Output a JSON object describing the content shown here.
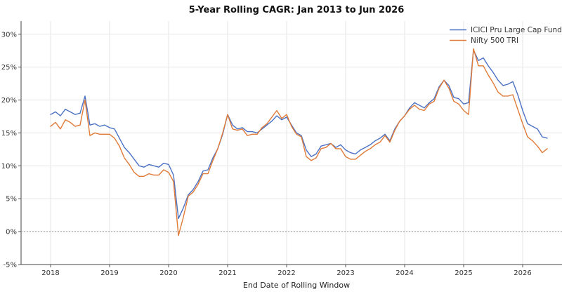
{
  "chart_data": {
    "type": "line",
    "title": "5-Year Rolling CAGR: Jan 2013 to Jun 2026",
    "xlabel": "End Date of Rolling Window",
    "ylabel": "",
    "x_ticks": [
      "2018",
      "2019",
      "2020",
      "2021",
      "2022",
      "2023",
      "2024",
      "2025",
      "2026"
    ],
    "y_ticks": [
      "-5%",
      "0%",
      "5%",
      "10%",
      "15%",
      "20%",
      "25%",
      "30%"
    ],
    "xlim": [
      "2017-07",
      "2026-09"
    ],
    "ylim": [
      -5,
      32
    ],
    "grid": true,
    "zero_line": true,
    "legend_position": "top-right",
    "x": [
      "2018-01",
      "2018-02",
      "2018-03",
      "2018-04",
      "2018-05",
      "2018-06",
      "2018-07",
      "2018-08",
      "2018-09",
      "2018-10",
      "2018-11",
      "2018-12",
      "2019-01",
      "2019-02",
      "2019-03",
      "2019-04",
      "2019-05",
      "2019-06",
      "2019-07",
      "2019-08",
      "2019-09",
      "2019-10",
      "2019-11",
      "2019-12",
      "2020-01",
      "2020-02",
      "2020-03",
      "2020-04",
      "2020-05",
      "2020-06",
      "2020-07",
      "2020-08",
      "2020-09",
      "2020-10",
      "2020-11",
      "2020-12",
      "2021-01",
      "2021-02",
      "2021-03",
      "2021-04",
      "2021-05",
      "2021-06",
      "2021-07",
      "2021-08",
      "2021-09",
      "2021-10",
      "2021-11",
      "2021-12",
      "2022-01",
      "2022-02",
      "2022-03",
      "2022-04",
      "2022-05",
      "2022-06",
      "2022-07",
      "2022-08",
      "2022-09",
      "2022-10",
      "2022-11",
      "2022-12",
      "2023-01",
      "2023-02",
      "2023-03",
      "2023-04",
      "2023-05",
      "2023-06",
      "2023-07",
      "2023-08",
      "2023-09",
      "2023-10",
      "2023-11",
      "2023-12",
      "2024-01",
      "2024-02",
      "2024-03",
      "2024-04",
      "2024-05",
      "2024-06",
      "2024-07",
      "2024-08",
      "2024-09",
      "2024-10",
      "2024-11",
      "2024-12",
      "2025-01",
      "2025-02",
      "2025-03",
      "2025-04",
      "2025-05",
      "2025-06",
      "2025-07",
      "2025-08",
      "2025-09",
      "2025-10",
      "2025-11",
      "2025-12",
      "2026-01",
      "2026-02",
      "2026-03",
      "2026-04",
      "2026-05",
      "2026-06"
    ],
    "series": [
      {
        "name": "ICICI Pru Large Cap Fund",
        "color": "#4c72c4",
        "values": [
          17.8,
          18.2,
          17.6,
          18.6,
          18.2,
          17.8,
          18.0,
          20.6,
          16.2,
          16.4,
          16.0,
          16.2,
          15.8,
          15.6,
          14.2,
          12.8,
          12.0,
          11.0,
          10.0,
          9.8,
          10.2,
          10.0,
          9.8,
          10.4,
          10.2,
          8.6,
          2.0,
          3.6,
          5.6,
          6.4,
          7.6,
          9.2,
          9.4,
          11.2,
          12.6,
          14.8,
          17.8,
          16.2,
          15.6,
          15.8,
          15.2,
          15.2,
          15.0,
          15.6,
          16.2,
          16.8,
          17.6,
          17.0,
          17.4,
          16.2,
          15.0,
          14.6,
          12.4,
          11.4,
          11.8,
          13.0,
          13.2,
          13.4,
          12.8,
          13.2,
          12.4,
          12.0,
          11.8,
          12.4,
          12.8,
          13.2,
          13.8,
          14.2,
          14.8,
          13.8,
          15.6,
          16.8,
          17.6,
          18.8,
          19.6,
          19.2,
          18.8,
          19.6,
          20.2,
          22.0,
          23.0,
          22.2,
          20.4,
          20.2,
          19.4,
          19.6,
          27.6,
          26.0,
          26.4,
          25.2,
          24.2,
          23.0,
          22.2,
          22.4,
          22.8,
          20.8,
          18.4,
          16.4,
          16.0,
          15.6,
          14.4,
          14.2
        ]
      },
      {
        "name": "Nifty 500 TRI",
        "color": "#e07b39",
        "values": [
          16.0,
          16.6,
          15.6,
          17.0,
          16.6,
          16.0,
          16.2,
          20.0,
          14.6,
          15.0,
          14.8,
          14.8,
          14.8,
          14.2,
          13.0,
          11.2,
          10.2,
          9.0,
          8.4,
          8.4,
          8.8,
          8.6,
          8.6,
          9.4,
          9.0,
          7.6,
          -0.6,
          2.2,
          5.4,
          6.0,
          7.2,
          8.8,
          8.8,
          10.8,
          12.6,
          15.0,
          17.8,
          15.6,
          15.4,
          15.6,
          14.6,
          14.8,
          14.8,
          15.8,
          16.4,
          17.4,
          18.4,
          17.2,
          17.8,
          16.0,
          14.8,
          14.4,
          11.4,
          10.8,
          11.2,
          12.6,
          12.8,
          13.4,
          12.6,
          12.6,
          11.4,
          11.0,
          11.0,
          11.6,
          12.2,
          12.6,
          13.2,
          13.6,
          14.6,
          13.6,
          15.4,
          16.8,
          17.6,
          18.6,
          19.2,
          18.6,
          18.4,
          19.4,
          19.8,
          21.8,
          23.0,
          21.8,
          19.8,
          19.4,
          18.4,
          17.8,
          27.8,
          25.2,
          25.2,
          23.8,
          22.6,
          21.2,
          20.6,
          20.6,
          20.8,
          18.6,
          16.4,
          14.4,
          13.8,
          13.0,
          12.0,
          12.6
        ]
      }
    ]
  }
}
